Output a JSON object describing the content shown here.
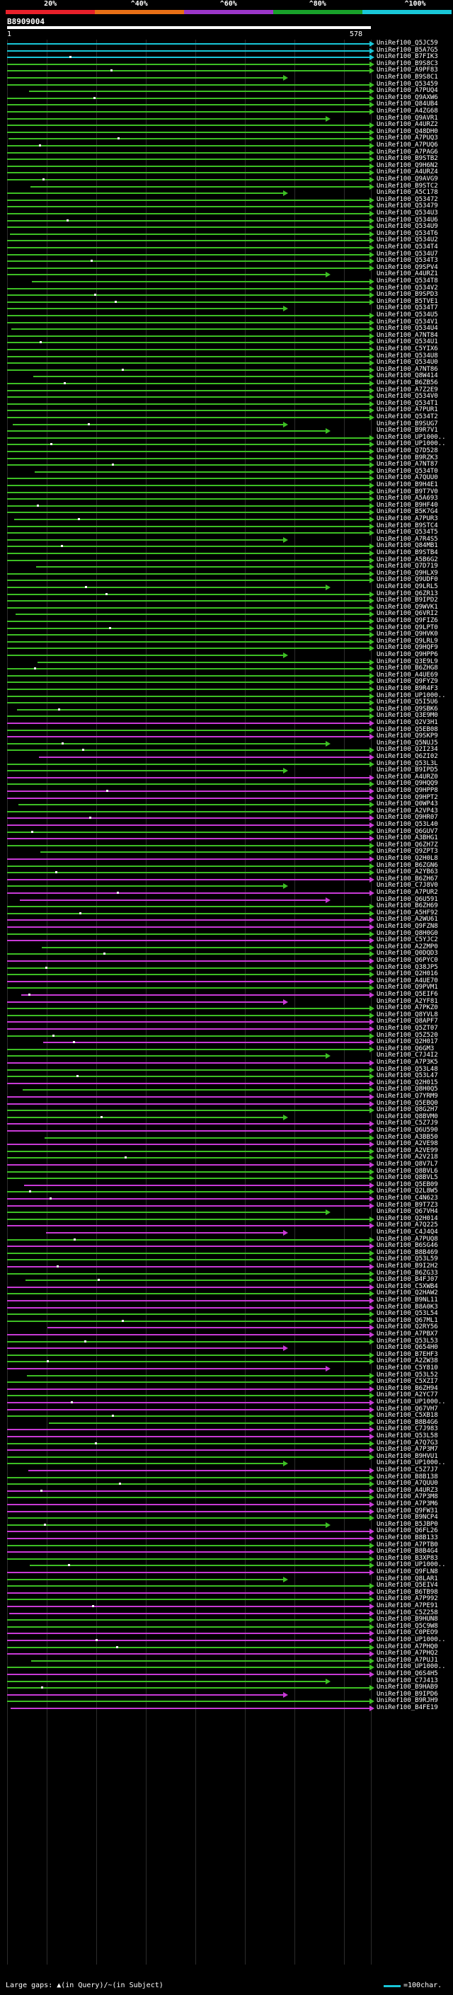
{
  "legend": {
    "labels": [
      "20%",
      "^40%",
      "^60%",
      "^80%",
      "^100%"
    ],
    "colors": [
      "#e8202a",
      "#e86f16",
      "#9b36c9",
      "#18a12a",
      "#19c7d8"
    ]
  },
  "query": {
    "id": "B8909004",
    "ruler_start": "1",
    "ruler_end": "578"
  },
  "colors": {
    "cyan": "#19c7d8",
    "green": "#3dbf24",
    "magenta": "#c83ad6",
    "gridline": "#2c2c2c"
  },
  "hits": [
    "UniRef100_Q5JC59",
    "UniRef100_B5A7G5",
    "UniRef100_B7FIK3",
    "UniRef100_B9S8C3",
    "UniRef100_A9PF83",
    "UniRef100_B9S8C1",
    "UniRef100_Q53459",
    "UniRef100_A7PUQ4",
    "UniRef100_Q9AXW6",
    "UniRef100_Q84UB4",
    "UniRef100_A4ZG68",
    "UniRef100_Q9AVR1",
    "UniRef100_A4URZ2",
    "UniRef100_Q48DH0",
    "UniRef100_A7PUQ3",
    "UniRef100_A7PUQ6",
    "UniRef100_A7PAG6",
    "UniRef100_B9STB2",
    "UniRef100_Q9H6N2",
    "UniRef100_A4URZ4",
    "UniRef100_Q9AVG9",
    "UniRef100_B9STC2",
    "UniRef100_A5C178",
    "UniRef100_Q53472",
    "UniRef100_Q53479",
    "UniRef100_Q534U3",
    "UniRef100_Q534U6",
    "UniRef100_Q534U9",
    "UniRef100_Q534T6",
    "UniRef100_Q534U2",
    "UniRef100_Q534T4",
    "UniRef100_Q534U7",
    "UniRef100_Q534T3",
    "UniRef100_Q9SPV4",
    "UniRef100_A4URZ1",
    "UniRef100_Q534T8",
    "UniRef100_Q534V2",
    "UniRef100_B9SPD3",
    "UniRef100_B5TVE1",
    "UniRef100_Q534T7",
    "UniRef100_Q534U5",
    "UniRef100_Q534V1",
    "UniRef100_Q534U4",
    "UniRef100_A7NT84",
    "UniRef100_Q534U1",
    "UniRef100_C5YIX6",
    "UniRef100_Q534U8",
    "UniRef100_Q534U0",
    "UniRef100_A7NT86",
    "UniRef100_Q8W414",
    "UniRef100_B6ZB56",
    "UniRef100_A7Z2E9",
    "UniRef100_Q534V0",
    "UniRef100_Q534T1",
    "UniRef100_A7PUR1",
    "UniRef100_Q534T2",
    "UniRef100_B9SUG7",
    "UniRef100_B9R7V1",
    "UniRef100_UP1000..",
    "UniRef100_UP1000..",
    "UniRef100_Q7D528",
    "UniRef100_B9RZK3",
    "UniRef100_A7NT87",
    "UniRef100_Q534T0",
    "UniRef100_A7QUU0",
    "UniRef100_B9H4E1",
    "UniRef100_B9T7V0",
    "UniRef100_A5A693",
    "UniRef100_B9HF40",
    "UniRef100_B5K7G4",
    "UniRef100_A7PUR3",
    "UniRef100_B9STC4",
    "UniRef100_Q534T5",
    "UniRef100_A7R4S5",
    "UniRef100_Q84MB1",
    "UniRef100_B9STB4",
    "UniRef100_A5B6G2",
    "UniRef100_Q7D719",
    "UniRef100_Q9HLX9",
    "UniRef100_Q9UDF0",
    "UniRef100_Q9LRL5",
    "UniRef100_Q6ZR13",
    "UniRef100_B9IPD2",
    "UniRef100_Q9WVK1",
    "UniRef100_Q6VRI2",
    "UniRef100_Q9FIZ6",
    "UniRef100_Q9LPT0",
    "UniRef100_Q9HVK0",
    "UniRef100_Q9LRL9",
    "UniRef100_Q9HQF9",
    "UniRef100_Q9HPP6",
    "UniRef100_Q3E9L9",
    "UniRef100_B6ZHG8",
    "UniRef100_A4UE69",
    "UniRef100_Q9FYZ9",
    "UniRef100_B9R4F3",
    "UniRef100_UP1000..",
    "UniRef100_Q5I5U6",
    "UniRef100_Q9SBK6",
    "UniRef100_Q3E9M0",
    "UniRef100_Q2V3H1",
    "UniRef100_Q5EB08",
    "UniRef100_Q9SKP9",
    "UniRef100_Q5NUJ5",
    "UniRef100_Q2I234",
    "UniRef100_Q6ZI02",
    "UniRef100_Q53L3L",
    "UniRef100_B9IPD5",
    "UniRef100_A4URZ0",
    "UniRef100_Q9HQQ9",
    "UniRef100_Q9HPP8",
    "UniRef100_Q9HPT2",
    "UniRef100_Q0WP43",
    "UniRef100_A2VP43",
    "UniRef100_Q9HR07",
    "UniRef100_Q53L40",
    "UniRef100_Q6GUV7",
    "UniRef100_A3BHG1",
    "UniRef100_Q6ZH7Z",
    "UniRef100_Q9ZPT3",
    "UniRef100_Q2H0L8",
    "UniRef100_B6ZGN6",
    "UniRef100_A2YB63",
    "UniRef100_B6ZH67",
    "UniRef100_C7J8V0",
    "UniRef100_A7PUR2",
    "UniRef100_Q6U591",
    "UniRef100_B6ZH69",
    "UniRef100_A5HF92",
    "UniRef100_A2WU61",
    "UniRef100_Q9FZN8",
    "UniRef100_Q8H0G0",
    "UniRef100_C5YJC2",
    "UniRef100_A2ZMP0",
    "UniRef100_Q0DQD3",
    "UniRef100_Q6PYC0",
    "UniRef100_Q38JP5",
    "UniRef100_Q2H016",
    "UniRef100_A4UE70",
    "UniRef100_Q9PVM1",
    "UniRef100_Q5EIF6",
    "UniRef100_A2YF81",
    "UniRef100_A7PKZ0",
    "UniRef100_Q8YVL8",
    "UniRef100_Q8APF7",
    "UniRef100_Q5ZT07",
    "UniRef100_Q5Z520",
    "UniRef100_Q2H017",
    "UniRef100_Q6GM3",
    "UniRef100_C7J4I2",
    "UniRef100_A7P3K5",
    "UniRef100_Q53L48",
    "UniRef100_Q53L47",
    "UniRef100_Q2H015",
    "UniRef100_Q8H0Q5",
    "UniRef100_Q7YRM9",
    "UniRef100_Q5EBQ0",
    "UniRef100_Q8G2H7",
    "UniRef100_Q8BVM0",
    "UniRef100_C5Z7J9",
    "UniRef100_Q6U590",
    "UniRef100_A3BB50",
    "UniRef100_A2VE98",
    "UniRef100_A2VE99",
    "UniRef100_A2V218",
    "UniRef100_Q8V7L7",
    "UniRef100_Q8BVL6",
    "UniRef100_Q8BVL5",
    "UniRef100_Q5EB09",
    "UniRef100_Q2L8W5",
    "UniRef100_C4N623",
    "UniRef100_B9T7Z3",
    "UniRef100_Q67VH4",
    "UniRef100_Q2H014",
    "UniRef100_A7Q225",
    "UniRef100_C4J4Q4",
    "UniRef100_A7PUQ8",
    "UniRef100_B6SG46",
    "UniRef100_B8B469",
    "UniRef100_Q53L59",
    "UniRef100_B9I2H2",
    "UniRef100_B6ZG33",
    "UniRef100_B4FJ07",
    "UniRef100_C5XWB4",
    "UniRef100_Q2HAW2",
    "UniRef100_B9NL11",
    "UniRef100_B8A0K3",
    "UniRef100_Q53L54",
    "UniRef100_Q67ML1",
    "UniRef100_Q2RY56",
    "UniRef100_A7PBX7",
    "UniRef100_Q53L53",
    "UniRef100_Q654H0",
    "UniRef100_B7EHF3",
    "UniRef100_A2ZW38",
    "UniRef100_C5Y810",
    "UniRef100_Q53L52",
    "UniRef100_C5XZI7",
    "UniRef100_B6ZH94",
    "UniRef100_A2YC77",
    "UniRef100_UP1000..",
    "UniRef100_Q67VH7",
    "UniRef100_C5XB18",
    "UniRef100_B8B4G6",
    "UniRef100_C7J983",
    "UniRef100_Q53L58",
    "UniRef100_A7Q7G3",
    "UniRef100_A7P3M7",
    "UniRef100_B9HVU1",
    "UniRef100_UP1000..",
    "UniRef100_C5Z7J7",
    "UniRef100_B8B138",
    "UniRef100_A7QUU0",
    "UniRef100_A4URZ3",
    "UniRef100_A7P3M8",
    "UniRef100_A7P3M6",
    "UniRef100_Q9FW31",
    "UniRef100_B9NCP4",
    "UniRef100_B5JBP0",
    "UniRef100_Q6FL26",
    "UniRef100_B8B133",
    "UniRef100_A7PTB0",
    "UniRef100_B8B4G4",
    "UniRef100_B3XP83",
    "UniRef100_UP1000..",
    "UniRef100_Q9FLN8",
    "UniRef100_Q8LAR1",
    "UniRef100_Q5EIV4",
    "UniRef100_B6TB98",
    "UniRef100_A7P992",
    "UniRef100_A7PE91",
    "UniRef100_C5Z258",
    "UniRef100_B9HUN8",
    "UniRef100_Q5C9W8",
    "UniRef100_C0PEO9",
    "UniRef100_UP1000..",
    "UniRef100_A7PHQ0",
    "UniRef100_A7PHQ2",
    "UniRef100_A7PUJ1",
    "UniRef100_UP1000..",
    "UniRef100_Q6S4H5",
    "UniRef100_C7J413",
    "UniRef100_B9HAB9",
    "UniRef100_B9IPD6",
    "UniRef100_B9RJH9",
    "UniRef100_B4FE19"
  ],
  "footer": {
    "key": "Large gaps: ▲(in Query)/~(in Subject)",
    "scale": "=100char."
  }
}
